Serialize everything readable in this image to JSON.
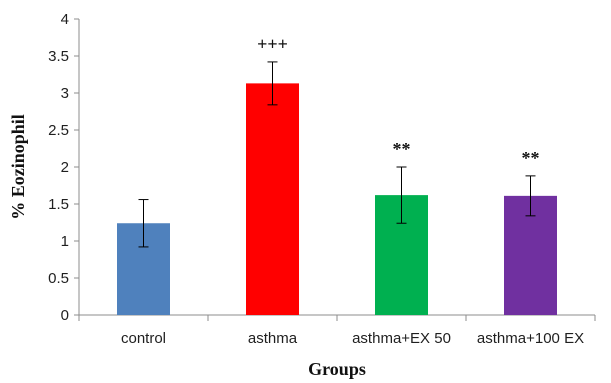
{
  "chart_data": {
    "type": "bar",
    "title": "",
    "xlabel": "Groups",
    "ylabel": "% Eozinophil",
    "ylim": [
      0,
      4
    ],
    "yticks": [
      "0",
      "0.5",
      "1",
      "1.5",
      "2",
      "2.5",
      "3",
      "3.5",
      "4"
    ],
    "grid": false,
    "legend": "none",
    "categories": [
      "control",
      "asthma",
      "asthma+EX 50",
      "asthma+100 EX"
    ],
    "values": [
      1.24,
      3.13,
      1.62,
      1.61
    ],
    "errors": [
      0.32,
      0.29,
      0.38,
      0.27
    ],
    "annotations": [
      "",
      "+++",
      "**",
      "**"
    ],
    "colors": [
      "#4f81bd",
      "#ff0000",
      "#00b050",
      "#7030a0"
    ],
    "axis_color": "#8c8c8c",
    "error_bar_color": "#000000"
  }
}
